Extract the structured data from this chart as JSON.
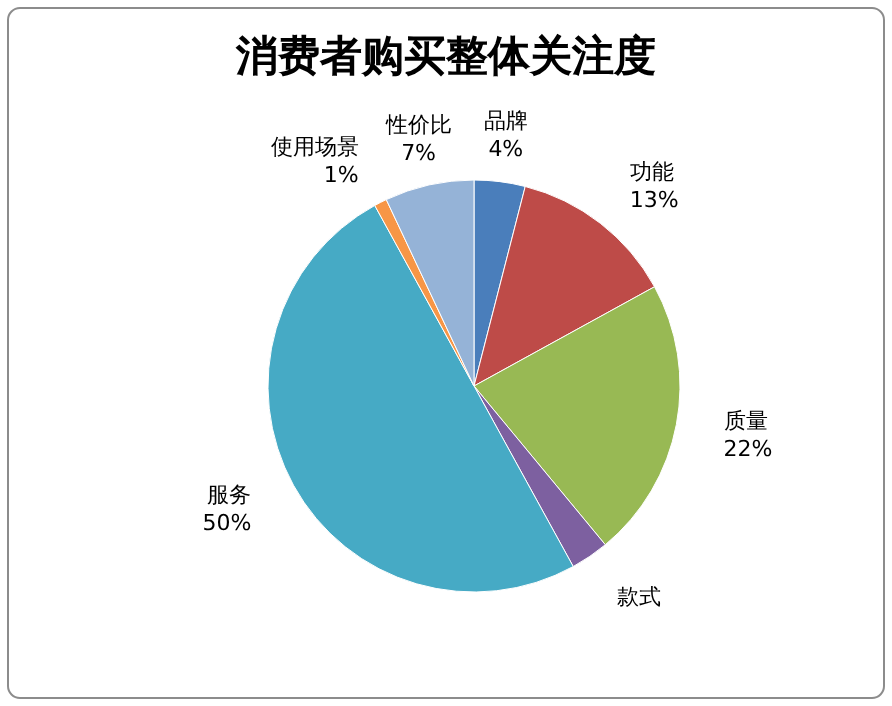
{
  "chart_data": {
    "type": "pie",
    "title": "消费者购买整体关注度",
    "categories": [
      "品牌",
      "功能",
      "质量",
      "款式",
      "服务",
      "使用场景",
      "性价比"
    ],
    "values": [
      4,
      13,
      22,
      3,
      50,
      1,
      7
    ],
    "colors": [
      "#4a7ebb",
      "#be4b48",
      "#98b954",
      "#7d60a0",
      "#46aac5",
      "#f79646",
      "#95b3d7"
    ],
    "value_labels": [
      "4%",
      "13%",
      "22%",
      null,
      "50%",
      "1%",
      "7%"
    ]
  }
}
